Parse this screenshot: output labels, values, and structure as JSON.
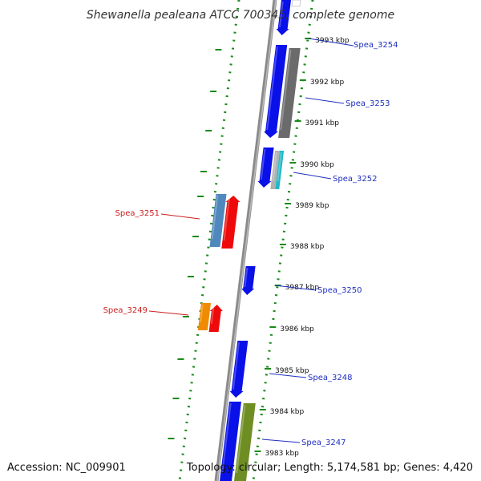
{
  "title": "Shewanella pealeana ATCC 700345, complete genome",
  "accession": "Accession: NC_009901",
  "topology": "Topology: circular; Length: 5,174,581 bp; Genes: 4,420",
  "colors": {
    "background": "#ffffff",
    "backbone": "#8a8a8a",
    "dotted_guide": "#1a8a1a",
    "tick_mark": "#1a8a1a",
    "label_forward": "#1f2fbf",
    "label_reverse": "#cc1f1f",
    "gene_blue": "#0a10e8",
    "gene_gray": "#6b6b6b",
    "gene_lightgray": "#b0b0b0",
    "gene_cyan": "#20b8c8",
    "gene_steelblue": "#4f88bd",
    "gene_red": "#ee0a0a",
    "gene_orange": "#f08a00",
    "gene_olive": "#6e8e24",
    "gene_white": "#ffffff"
  },
  "ticks": [
    "3993 kbp",
    "3992 kbp",
    "3991 kbp",
    "3990 kbp",
    "3989 kbp",
    "3988 kbp",
    "3987 kbp",
    "3986 kbp",
    "3985 kbp",
    "3984 kbp",
    "3983 kbp"
  ],
  "gene_labels": [
    {
      "text": "Spea_3254",
      "strand": "forward"
    },
    {
      "text": "Spea_3253",
      "strand": "forward"
    },
    {
      "text": "Spea_3252",
      "strand": "forward"
    },
    {
      "text": "Spea_3251",
      "strand": "reverse"
    },
    {
      "text": "Spea_3250",
      "strand": "forward"
    },
    {
      "text": "Spea_3249",
      "strand": "reverse"
    },
    {
      "text": "Spea_3248",
      "strand": "forward"
    },
    {
      "text": "Spea_3247",
      "strand": "forward"
    }
  ],
  "features": [
    {
      "color": "gene_blue",
      "direction": "down"
    },
    {
      "color": "gene_white",
      "direction": "none"
    },
    {
      "color": "gene_blue",
      "direction": "down"
    },
    {
      "color": "gene_gray",
      "direction": "none"
    },
    {
      "color": "gene_blue",
      "direction": "down"
    },
    {
      "color": "gene_lightgray",
      "direction": "none"
    },
    {
      "color": "gene_cyan",
      "direction": "none"
    },
    {
      "color": "gene_steelblue",
      "direction": "none"
    },
    {
      "color": "gene_red",
      "direction": "up"
    },
    {
      "color": "gene_blue",
      "direction": "down"
    },
    {
      "color": "gene_orange",
      "direction": "none"
    },
    {
      "color": "gene_red",
      "direction": "up"
    },
    {
      "color": "gene_blue",
      "direction": "down"
    },
    {
      "color": "gene_blue",
      "direction": "none"
    },
    {
      "color": "gene_olive",
      "direction": "none"
    }
  ]
}
